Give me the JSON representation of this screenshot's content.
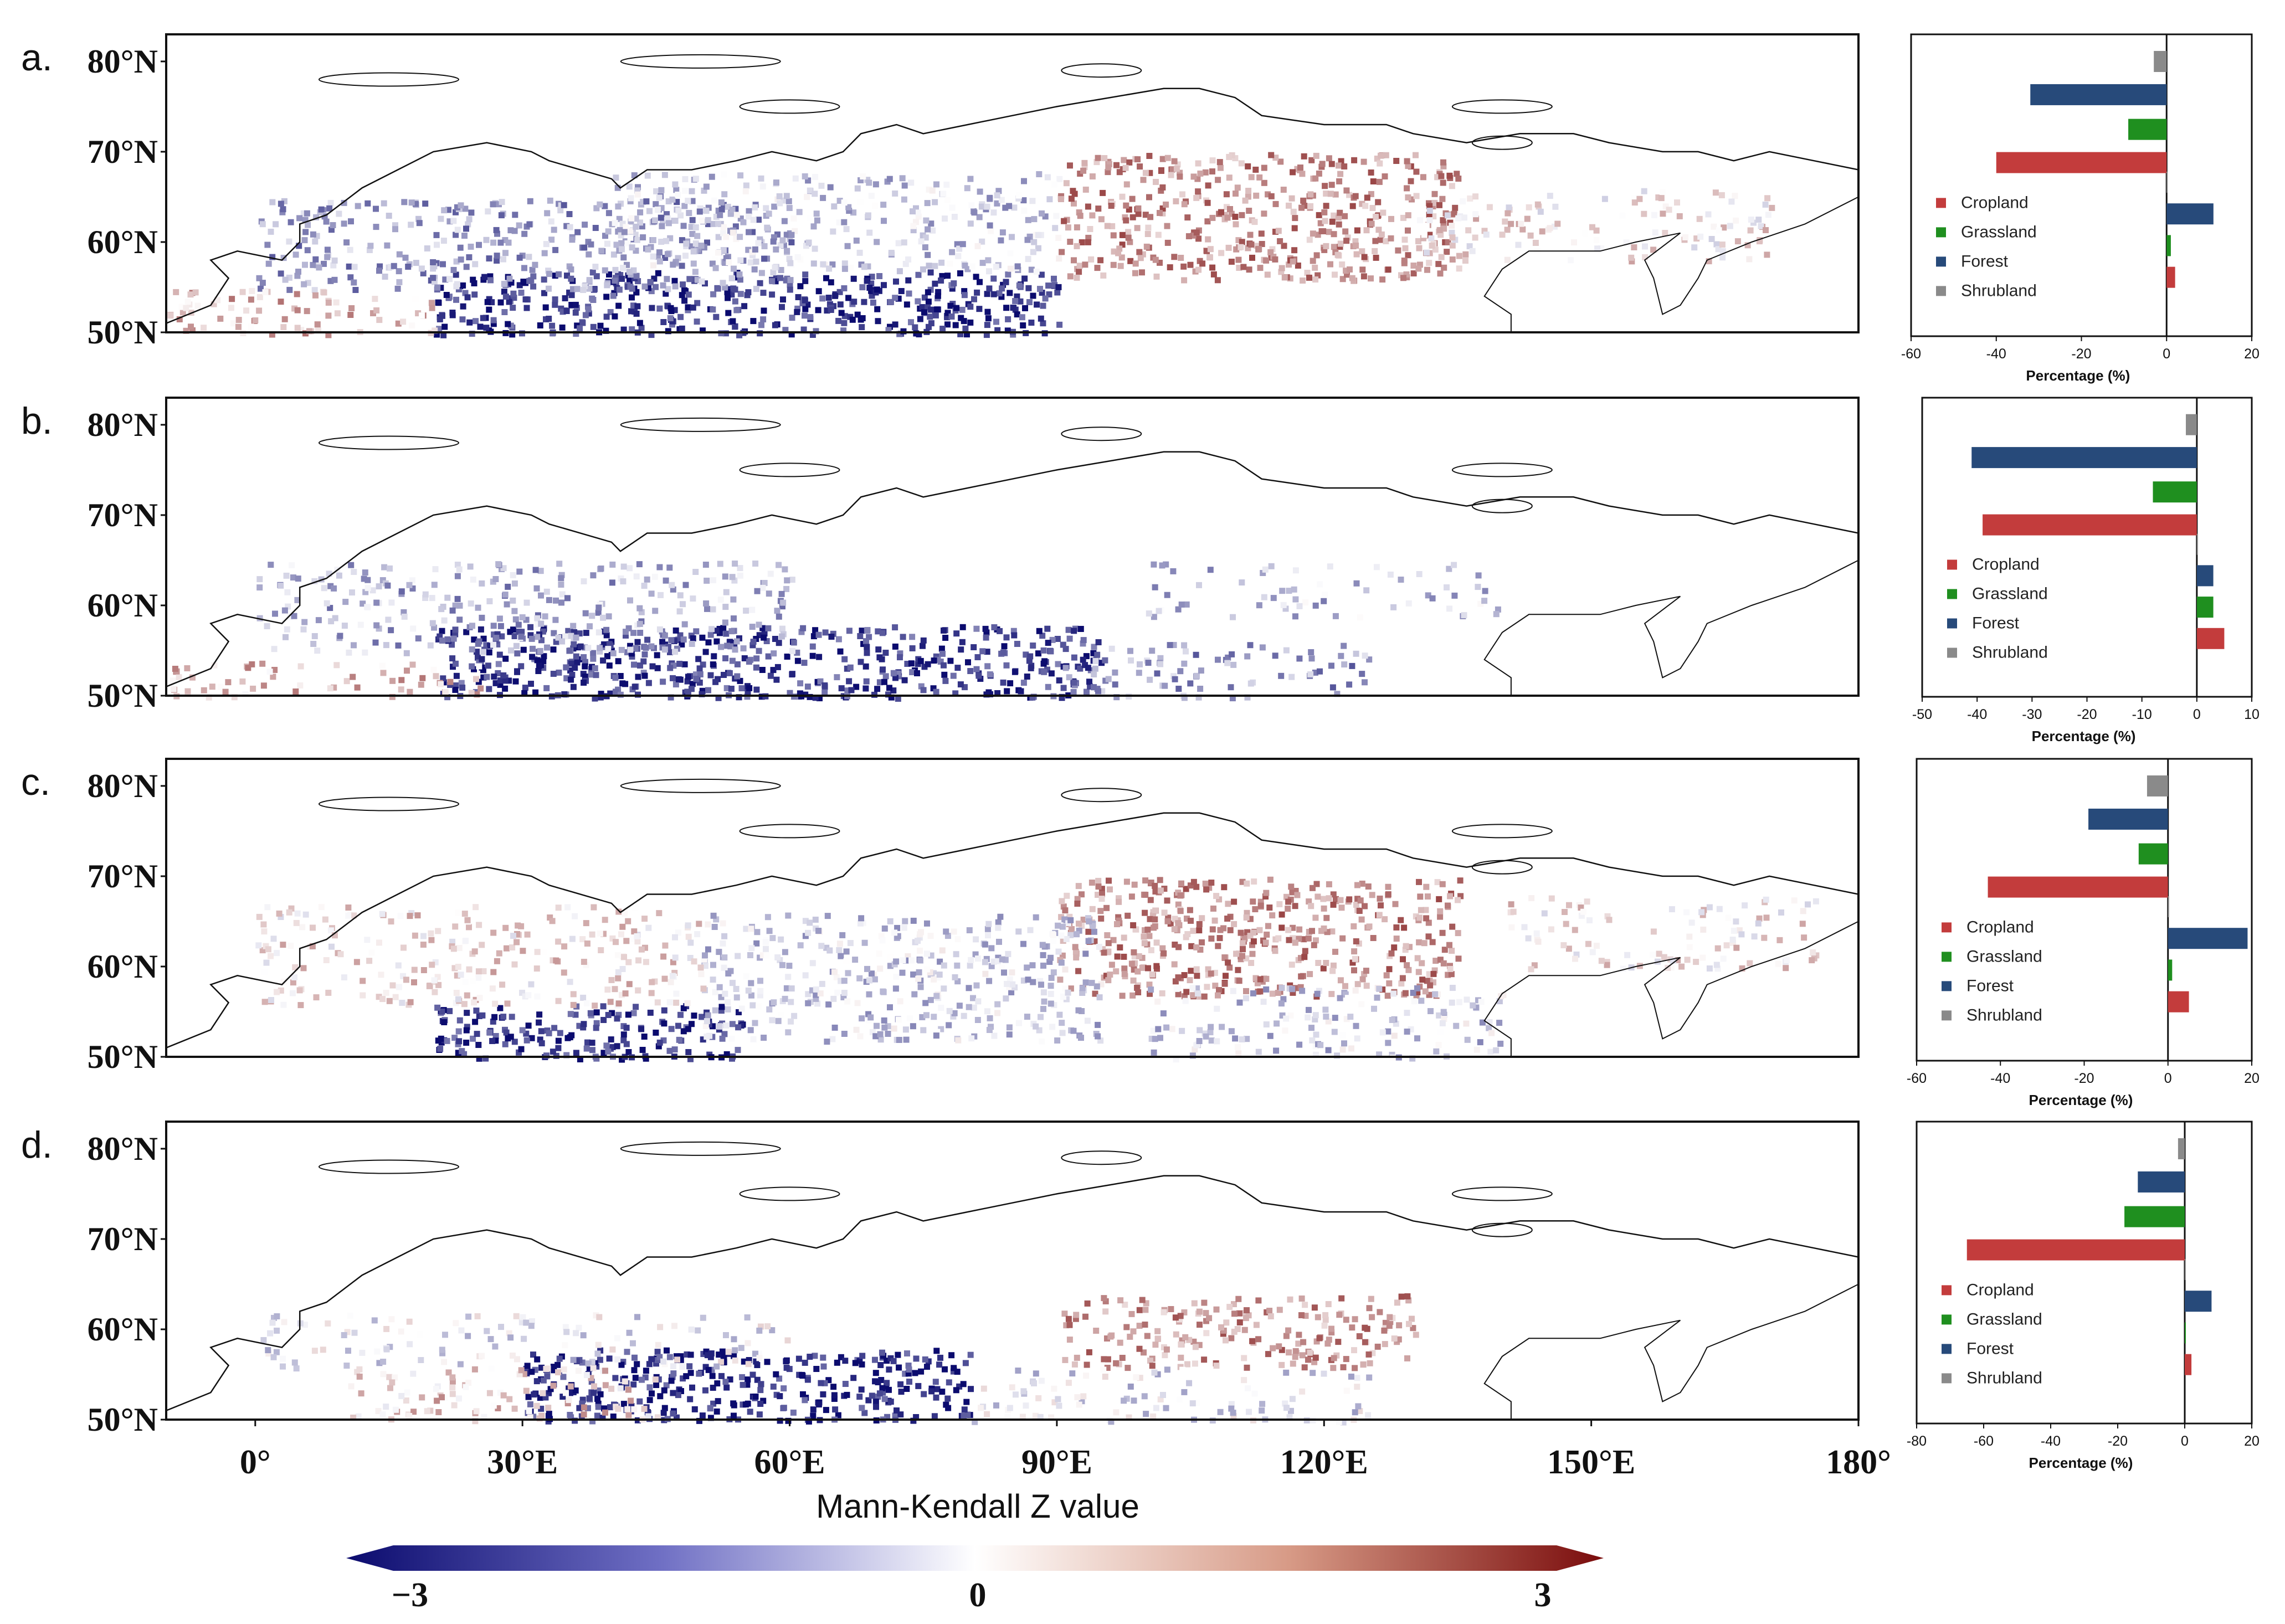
{
  "figure": {
    "lon_ticks": [
      "0°",
      "30°E",
      "60°E",
      "90°E",
      "120°E",
      "150°E",
      "180°"
    ],
    "lat_ticks": [
      "80°N",
      "70°N",
      "60°N",
      "50°N"
    ]
  },
  "colorbar": {
    "title": "Mann-Kendall Z value",
    "ticks": [
      "−3",
      "0",
      "3"
    ],
    "min": -3,
    "max": 3,
    "colors": {
      "low": "#0b0b6e",
      "mid": "#ffffff",
      "high": "#7a0c0c"
    }
  },
  "legend": [
    "Cropland",
    "Grassland",
    "Forest",
    "Shrubland"
  ],
  "colors": {
    "Cropland": "#c33c3c",
    "Grassland": "#1f8f1f",
    "Forest": "#274a7a",
    "Shrubland": "#8a8a8a"
  },
  "chart_data": [
    {
      "type": "bar",
      "orientation": "horizontal",
      "panel": "a.",
      "title": "a.",
      "xlabel": "Percentage (%)",
      "xlim": [
        -60,
        20
      ],
      "xticks": [
        "-60",
        "-40",
        "-20",
        "0",
        "20"
      ],
      "negative_values": {
        "Shrubland": -3,
        "Forest": -32,
        "Grassland": -9,
        "Cropland": -40
      },
      "positive_values": {
        "Cropland": 2,
        "Grassland": 1,
        "Forest": 11,
        "Shrubland": 0
      }
    },
    {
      "type": "bar",
      "orientation": "horizontal",
      "panel": "b.",
      "title": "b.",
      "xlabel": "Percentage (%)",
      "xlim": [
        -50,
        10
      ],
      "xticks": [
        "-50",
        "-40",
        "-30",
        "-20",
        "-10",
        "0",
        "10"
      ],
      "negative_values": {
        "Shrubland": -2,
        "Forest": -41,
        "Grassland": -8,
        "Cropland": -39
      },
      "positive_values": {
        "Cropland": 5,
        "Grassland": 3,
        "Forest": 3,
        "Shrubland": 0
      }
    },
    {
      "type": "bar",
      "orientation": "horizontal",
      "panel": "c.",
      "title": "c.",
      "xlabel": "Percentage (%)",
      "xlim": [
        -60,
        20
      ],
      "xticks": [
        "-60",
        "-40",
        "-20",
        "0",
        "20"
      ],
      "negative_values": {
        "Shrubland": -5,
        "Forest": -19,
        "Grassland": -7,
        "Cropland": -43
      },
      "positive_values": {
        "Cropland": 5,
        "Grassland": 1,
        "Forest": 19,
        "Shrubland": 0
      }
    },
    {
      "type": "bar",
      "orientation": "horizontal",
      "panel": "d.",
      "title": "d.",
      "xlabel": "Percentage (%)",
      "xlim": [
        -80,
        20
      ],
      "xticks": [
        "-80",
        "-60",
        "-40",
        "-20",
        "0",
        "20"
      ],
      "negative_values": {
        "Shrubland": -2,
        "Forest": -14,
        "Grassland": -18,
        "Cropland": -65
      },
      "positive_values": {
        "Cropland": 2,
        "Grassland": 0,
        "Forest": 8,
        "Shrubland": 0
      }
    }
  ]
}
